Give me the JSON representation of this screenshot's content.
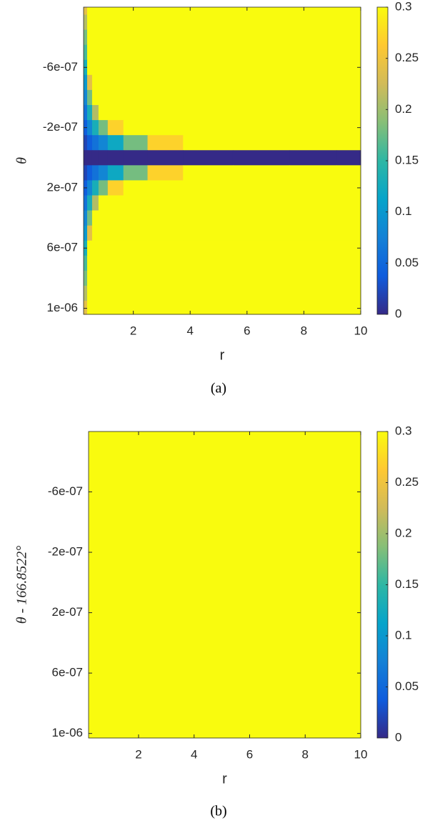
{
  "chart_data": [
    {
      "type": "heatmap",
      "xlabel": "r",
      "ylabel": "θ",
      "caption": "(a)",
      "x": [
        0.3,
        0.45,
        0.65,
        0.9,
        1.3,
        2,
        3,
        4.5,
        6.5,
        8.5,
        9.8
      ],
      "y": [
        -1e-06,
        -9e-07,
        -8e-07,
        -7e-07,
        -6e-07,
        -5e-07,
        -4e-07,
        -3e-07,
        -2e-07,
        -1e-07,
        0,
        1e-07,
        2e-07,
        3e-07,
        4e-07,
        5e-07,
        6e-07,
        7e-07,
        8e-07,
        9e-07,
        1e-06
      ],
      "z": [
        [
          0.24,
          0.3,
          0.3,
          0.3,
          0.3,
          0.3,
          0.3,
          0.3,
          0.3,
          0.3,
          0.3
        ],
        [
          0.21,
          0.3,
          0.3,
          0.3,
          0.3,
          0.3,
          0.3,
          0.3,
          0.3,
          0.3,
          0.3
        ],
        [
          0.18,
          0.3,
          0.3,
          0.3,
          0.3,
          0.3,
          0.3,
          0.3,
          0.3,
          0.3,
          0.3
        ],
        [
          0.16,
          0.3,
          0.3,
          0.3,
          0.3,
          0.3,
          0.3,
          0.3,
          0.3,
          0.3,
          0.3
        ],
        [
          0.13,
          0.3,
          0.3,
          0.3,
          0.3,
          0.3,
          0.3,
          0.3,
          0.3,
          0.3,
          0.3
        ],
        [
          0.1,
          0.24,
          0.3,
          0.3,
          0.3,
          0.3,
          0.3,
          0.3,
          0.3,
          0.3,
          0.3
        ],
        [
          0.08,
          0.18,
          0.3,
          0.3,
          0.3,
          0.3,
          0.3,
          0.3,
          0.3,
          0.3,
          0.3
        ],
        [
          0.06,
          0.13,
          0.21,
          0.3,
          0.3,
          0.3,
          0.3,
          0.3,
          0.3,
          0.3,
          0.3
        ],
        [
          0.04,
          0.08,
          0.13,
          0.18,
          0.27,
          0.3,
          0.3,
          0.3,
          0.3,
          0.3,
          0.3
        ],
        [
          0.02,
          0.04,
          0.06,
          0.08,
          0.12,
          0.18,
          0.27,
          0.3,
          0.3,
          0.3,
          0.3
        ],
        [
          0,
          0,
          0,
          0,
          0,
          0,
          0,
          0,
          0,
          0,
          0
        ],
        [
          0.02,
          0.04,
          0.06,
          0.08,
          0.12,
          0.18,
          0.27,
          0.3,
          0.3,
          0.3,
          0.3
        ],
        [
          0.04,
          0.08,
          0.13,
          0.18,
          0.27,
          0.3,
          0.3,
          0.3,
          0.3,
          0.3,
          0.3
        ],
        [
          0.06,
          0.13,
          0.21,
          0.3,
          0.3,
          0.3,
          0.3,
          0.3,
          0.3,
          0.3,
          0.3
        ],
        [
          0.08,
          0.18,
          0.3,
          0.3,
          0.3,
          0.3,
          0.3,
          0.3,
          0.3,
          0.3,
          0.3
        ],
        [
          0.1,
          0.24,
          0.3,
          0.3,
          0.3,
          0.3,
          0.3,
          0.3,
          0.3,
          0.3,
          0.3
        ],
        [
          0.13,
          0.3,
          0.3,
          0.3,
          0.3,
          0.3,
          0.3,
          0.3,
          0.3,
          0.3,
          0.3
        ],
        [
          0.16,
          0.3,
          0.3,
          0.3,
          0.3,
          0.3,
          0.3,
          0.3,
          0.3,
          0.3,
          0.3
        ],
        [
          0.18,
          0.3,
          0.3,
          0.3,
          0.3,
          0.3,
          0.3,
          0.3,
          0.3,
          0.3,
          0.3
        ],
        [
          0.21,
          0.3,
          0.3,
          0.3,
          0.3,
          0.3,
          0.3,
          0.3,
          0.3,
          0.3,
          0.3
        ],
        [
          0.24,
          0.3,
          0.3,
          0.3,
          0.3,
          0.3,
          0.3,
          0.3,
          0.3,
          0.3,
          0.3
        ]
      ],
      "xlim": [
        0.25,
        10
      ],
      "ylim": [
        -1e-06,
        1.04e-06
      ],
      "y_reversed": true,
      "xticks": [
        2,
        4,
        6,
        8,
        10
      ],
      "yticks": [
        {
          "value": -6e-07,
          "label": "-6e-07"
        },
        {
          "value": -2e-07,
          "label": "-2e-07"
        },
        {
          "value": 2e-07,
          "label": "2e-07"
        },
        {
          "value": 6e-07,
          "label": "6e-07"
        },
        {
          "value": 1e-06,
          "label": "1e-06"
        }
      ],
      "clim": [
        0,
        0.3
      ],
      "cticks": [
        0,
        0.05,
        0.1,
        0.15,
        0.2,
        0.25,
        0.3
      ],
      "colormap": [
        "#352a87",
        "#0f5cdd",
        "#1481d6",
        "#06a4ca",
        "#2eb7a4",
        "#87bf77",
        "#d1bb59",
        "#fec832",
        "#f9fb0e"
      ]
    },
    {
      "type": "heatmap",
      "xlabel": "r",
      "ylabel": "θ - 166.8522°",
      "caption": "(b)",
      "z": [
        [
          0.3
        ]
      ],
      "xlim": [
        0.2,
        10
      ],
      "ylim": [
        -1e-06,
        1.03e-06
      ],
      "y_reversed": true,
      "xticks": [
        2,
        4,
        6,
        8,
        10
      ],
      "yticks": [
        {
          "value": -6e-07,
          "label": "-6e-07"
        },
        {
          "value": -2e-07,
          "label": "-2e-07"
        },
        {
          "value": 2e-07,
          "label": "2e-07"
        },
        {
          "value": 6e-07,
          "label": "6e-07"
        },
        {
          "value": 1e-06,
          "label": "1e-06"
        }
      ],
      "clim": [
        0,
        0.3
      ],
      "cticks": [
        0,
        0.05,
        0.1,
        0.15,
        0.2,
        0.25,
        0.3
      ],
      "colormap": [
        "#352a87",
        "#0f5cdd",
        "#1481d6",
        "#06a4ca",
        "#2eb7a4",
        "#87bf77",
        "#d1bb59",
        "#fec832",
        "#f9fb0e"
      ]
    }
  ]
}
